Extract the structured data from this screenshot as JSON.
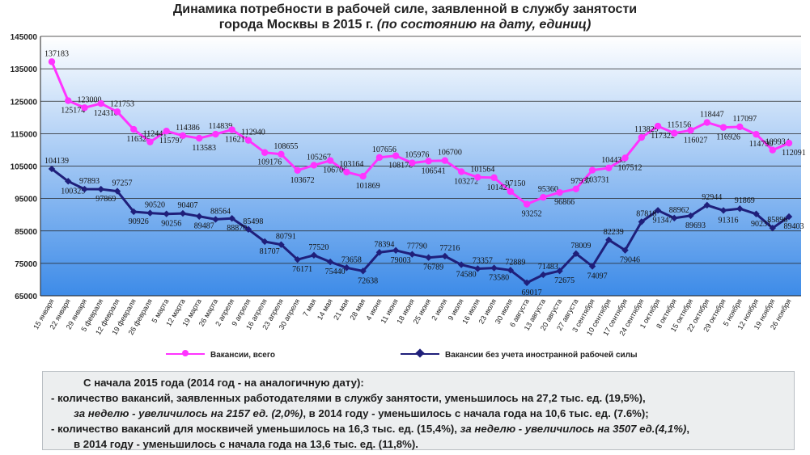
{
  "title": {
    "line1": "Динамика потребности в рабочей силе, заявленной в службу занятости",
    "line2_main": "города Москвы в 2015 г.",
    "line2_italic": "(по состоянию на дату, единиц)"
  },
  "legend": {
    "series1_label": "Вакансии, всего",
    "series2_label": "Вакансии без учета иностранной рабочей силы"
  },
  "notes": {
    "l1": "С начала 2015 года (2014 год - на аналогичную дату):",
    "l2": "- количество вакансий, заявленных работодателями в службу занятости, уменьшилось на 27,2  тыс. ед. (19,5%),",
    "l3_italic": "за неделю - увеличилось на 2157 ед. (2,0%)",
    "l3_rest": ", в 2014 году - уменьшилось с начала года на 10,6  тыс. ед. (7.6%);",
    "l4_a": "- количество вакансий для москвичей уменьшилось на 16,3 тыс. ед. (15,4%),",
    "l4_italic": "за неделю - увеличилось на 3507 ед.(4,1%)",
    "l4_b": ",",
    "l5": "в 2014 году - уменьшилось с начала года на 13,6 тыс. ед. (11,8%)."
  },
  "colors": {
    "series1": "#ff33ff",
    "series2": "#1f1f7a",
    "plot_top": "#ffffff",
    "plot_bottom": "#3d8be8"
  },
  "chart_data": {
    "type": "line",
    "ylim": [
      65000,
      145000
    ],
    "y_ticks": [
      65000,
      75000,
      85000,
      95000,
      105000,
      115000,
      125000,
      135000,
      145000
    ],
    "y_tick_labels": [
      "65000",
      "75000",
      "85000",
      "95000",
      "105000",
      "115000",
      "125000",
      "135000",
      "145000"
    ],
    "grid": true,
    "legend_position": "bottom",
    "categories": [
      "15 января",
      "22 января",
      "29 января",
      "5 февраля",
      "12 февраля",
      "19 февраля",
      "26 февраля",
      "5 марта",
      "12 марта",
      "19 марта",
      "26 марта",
      "2 апреля",
      "9 апреля",
      "16 апреля",
      "23 апреля",
      "30 апреля",
      "7 мая",
      "14 мая",
      "21 мая",
      "28 мая",
      "4 июня",
      "11 июня",
      "18 июня",
      "25 июня",
      "2 июля",
      "9 июля",
      "16 июля",
      "23 июля",
      "30 июля",
      "6 августа",
      "13 августа",
      "20 августа",
      "27 августа",
      "3 сентября",
      "10 сентября",
      "17 сентября",
      "24 сентября",
      "1 октября",
      "8 октября",
      "15 октября",
      "22 октября",
      "29 октября",
      "5 ноября",
      "12 ноября",
      "19 ноября",
      "26 ноября"
    ],
    "series": [
      {
        "name": "Вакансии, всего",
        "values": [
          137183,
          125174,
          123000,
          124310,
          121753,
          116325,
          112441,
          115797,
          114386,
          113583,
          114839,
          116211,
          112940,
          109176,
          108655,
          103672,
          105267,
          106706,
          103164,
          101869,
          107656,
          108178,
          105976,
          106541,
          106700,
          103272,
          101564,
          101421,
          97150,
          93252,
          95360,
          96866,
          97937,
          103731,
          104433,
          107512,
          113829,
          117322,
          115156,
          116027,
          118447,
          116926,
          117097,
          114790,
          109934,
          112091
        ]
      },
      {
        "name": "Вакансии без учета иностранной рабочей силы",
        "values": [
          104139,
          100325,
          97893,
          97869,
          97257,
          90926,
          90520,
          90256,
          90407,
          89487,
          88564,
          88870,
          85498,
          81707,
          80791,
          76171,
          77520,
          75440,
          73658,
          72638,
          78394,
          79003,
          77790,
          76789,
          77216,
          74580,
          73357,
          73580,
          72889,
          69017,
          71483,
          72675,
          78009,
          74097,
          82239,
          79046,
          87818,
          91347,
          88962,
          89693,
          92944,
          91316,
          91869,
          90231,
          85896,
          89403
        ]
      }
    ]
  }
}
